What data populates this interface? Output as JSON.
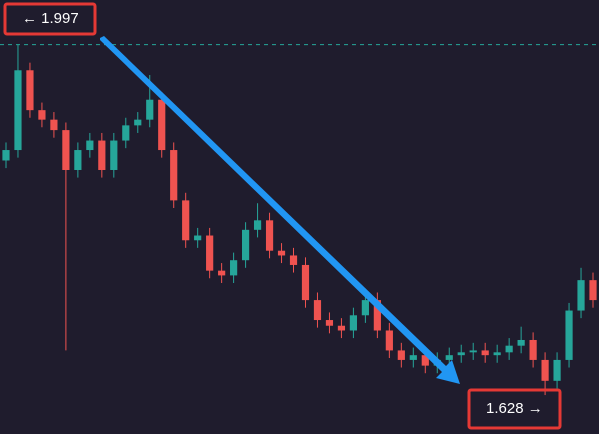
{
  "chart_data": {
    "type": "candlestick",
    "max_label": "← 1.997",
    "min_label": "1.628 →",
    "ylim": [
      1.587,
      2.044
    ],
    "up_color": "#26a69a",
    "down_color": "#ef5350",
    "open": [
      1.875,
      1.886,
      1.97,
      1.928,
      1.918,
      1.907,
      1.865,
      1.886,
      1.896,
      1.865,
      1.896,
      1.912,
      1.918,
      1.939,
      1.886,
      1.833,
      1.791,
      1.796,
      1.759,
      1.754,
      1.77,
      1.802,
      1.812,
      1.78,
      1.775,
      1.765,
      1.728,
      1.707,
      1.701,
      1.696,
      1.712,
      1.728,
      1.696,
      1.675,
      1.665,
      1.67,
      1.659,
      1.665,
      1.67,
      1.673,
      1.675,
      1.67,
      1.673,
      1.68,
      1.686,
      1.665,
      1.643,
      1.665,
      1.717,
      1.749
    ],
    "high": [
      1.894,
      1.997,
      1.978,
      1.936,
      1.926,
      1.915,
      1.894,
      1.904,
      1.904,
      1.904,
      1.92,
      1.926,
      1.965,
      1.947,
      1.894,
      1.841,
      1.804,
      1.804,
      1.767,
      1.778,
      1.81,
      1.83,
      1.82,
      1.788,
      1.783,
      1.773,
      1.736,
      1.715,
      1.709,
      1.72,
      1.74,
      1.736,
      1.704,
      1.683,
      1.678,
      1.678,
      1.673,
      1.678,
      1.681,
      1.683,
      1.683,
      1.681,
      1.688,
      1.7,
      1.694,
      1.673,
      1.673,
      1.725,
      1.762,
      1.757
    ],
    "low": [
      1.867,
      1.878,
      1.92,
      1.91,
      1.899,
      1.675,
      1.857,
      1.878,
      1.857,
      1.857,
      1.888,
      1.904,
      1.91,
      1.878,
      1.825,
      1.783,
      1.783,
      1.751,
      1.746,
      1.746,
      1.762,
      1.794,
      1.772,
      1.767,
      1.757,
      1.72,
      1.699,
      1.693,
      1.688,
      1.688,
      1.704,
      1.688,
      1.667,
      1.657,
      1.657,
      1.651,
      1.651,
      1.657,
      1.662,
      1.665,
      1.662,
      1.662,
      1.665,
      1.672,
      1.657,
      1.628,
      1.635,
      1.657,
      1.709,
      1.72
    ],
    "close": [
      1.886,
      1.97,
      1.928,
      1.918,
      1.907,
      1.865,
      1.886,
      1.896,
      1.865,
      1.896,
      1.912,
      1.918,
      1.939,
      1.886,
      1.833,
      1.791,
      1.796,
      1.759,
      1.754,
      1.77,
      1.802,
      1.812,
      1.78,
      1.775,
      1.765,
      1.728,
      1.707,
      1.701,
      1.696,
      1.712,
      1.728,
      1.696,
      1.675,
      1.665,
      1.67,
      1.659,
      1.665,
      1.67,
      1.673,
      1.675,
      1.67,
      1.673,
      1.68,
      1.686,
      1.665,
      1.643,
      1.665,
      1.717,
      1.749,
      1.728
    ]
  }
}
